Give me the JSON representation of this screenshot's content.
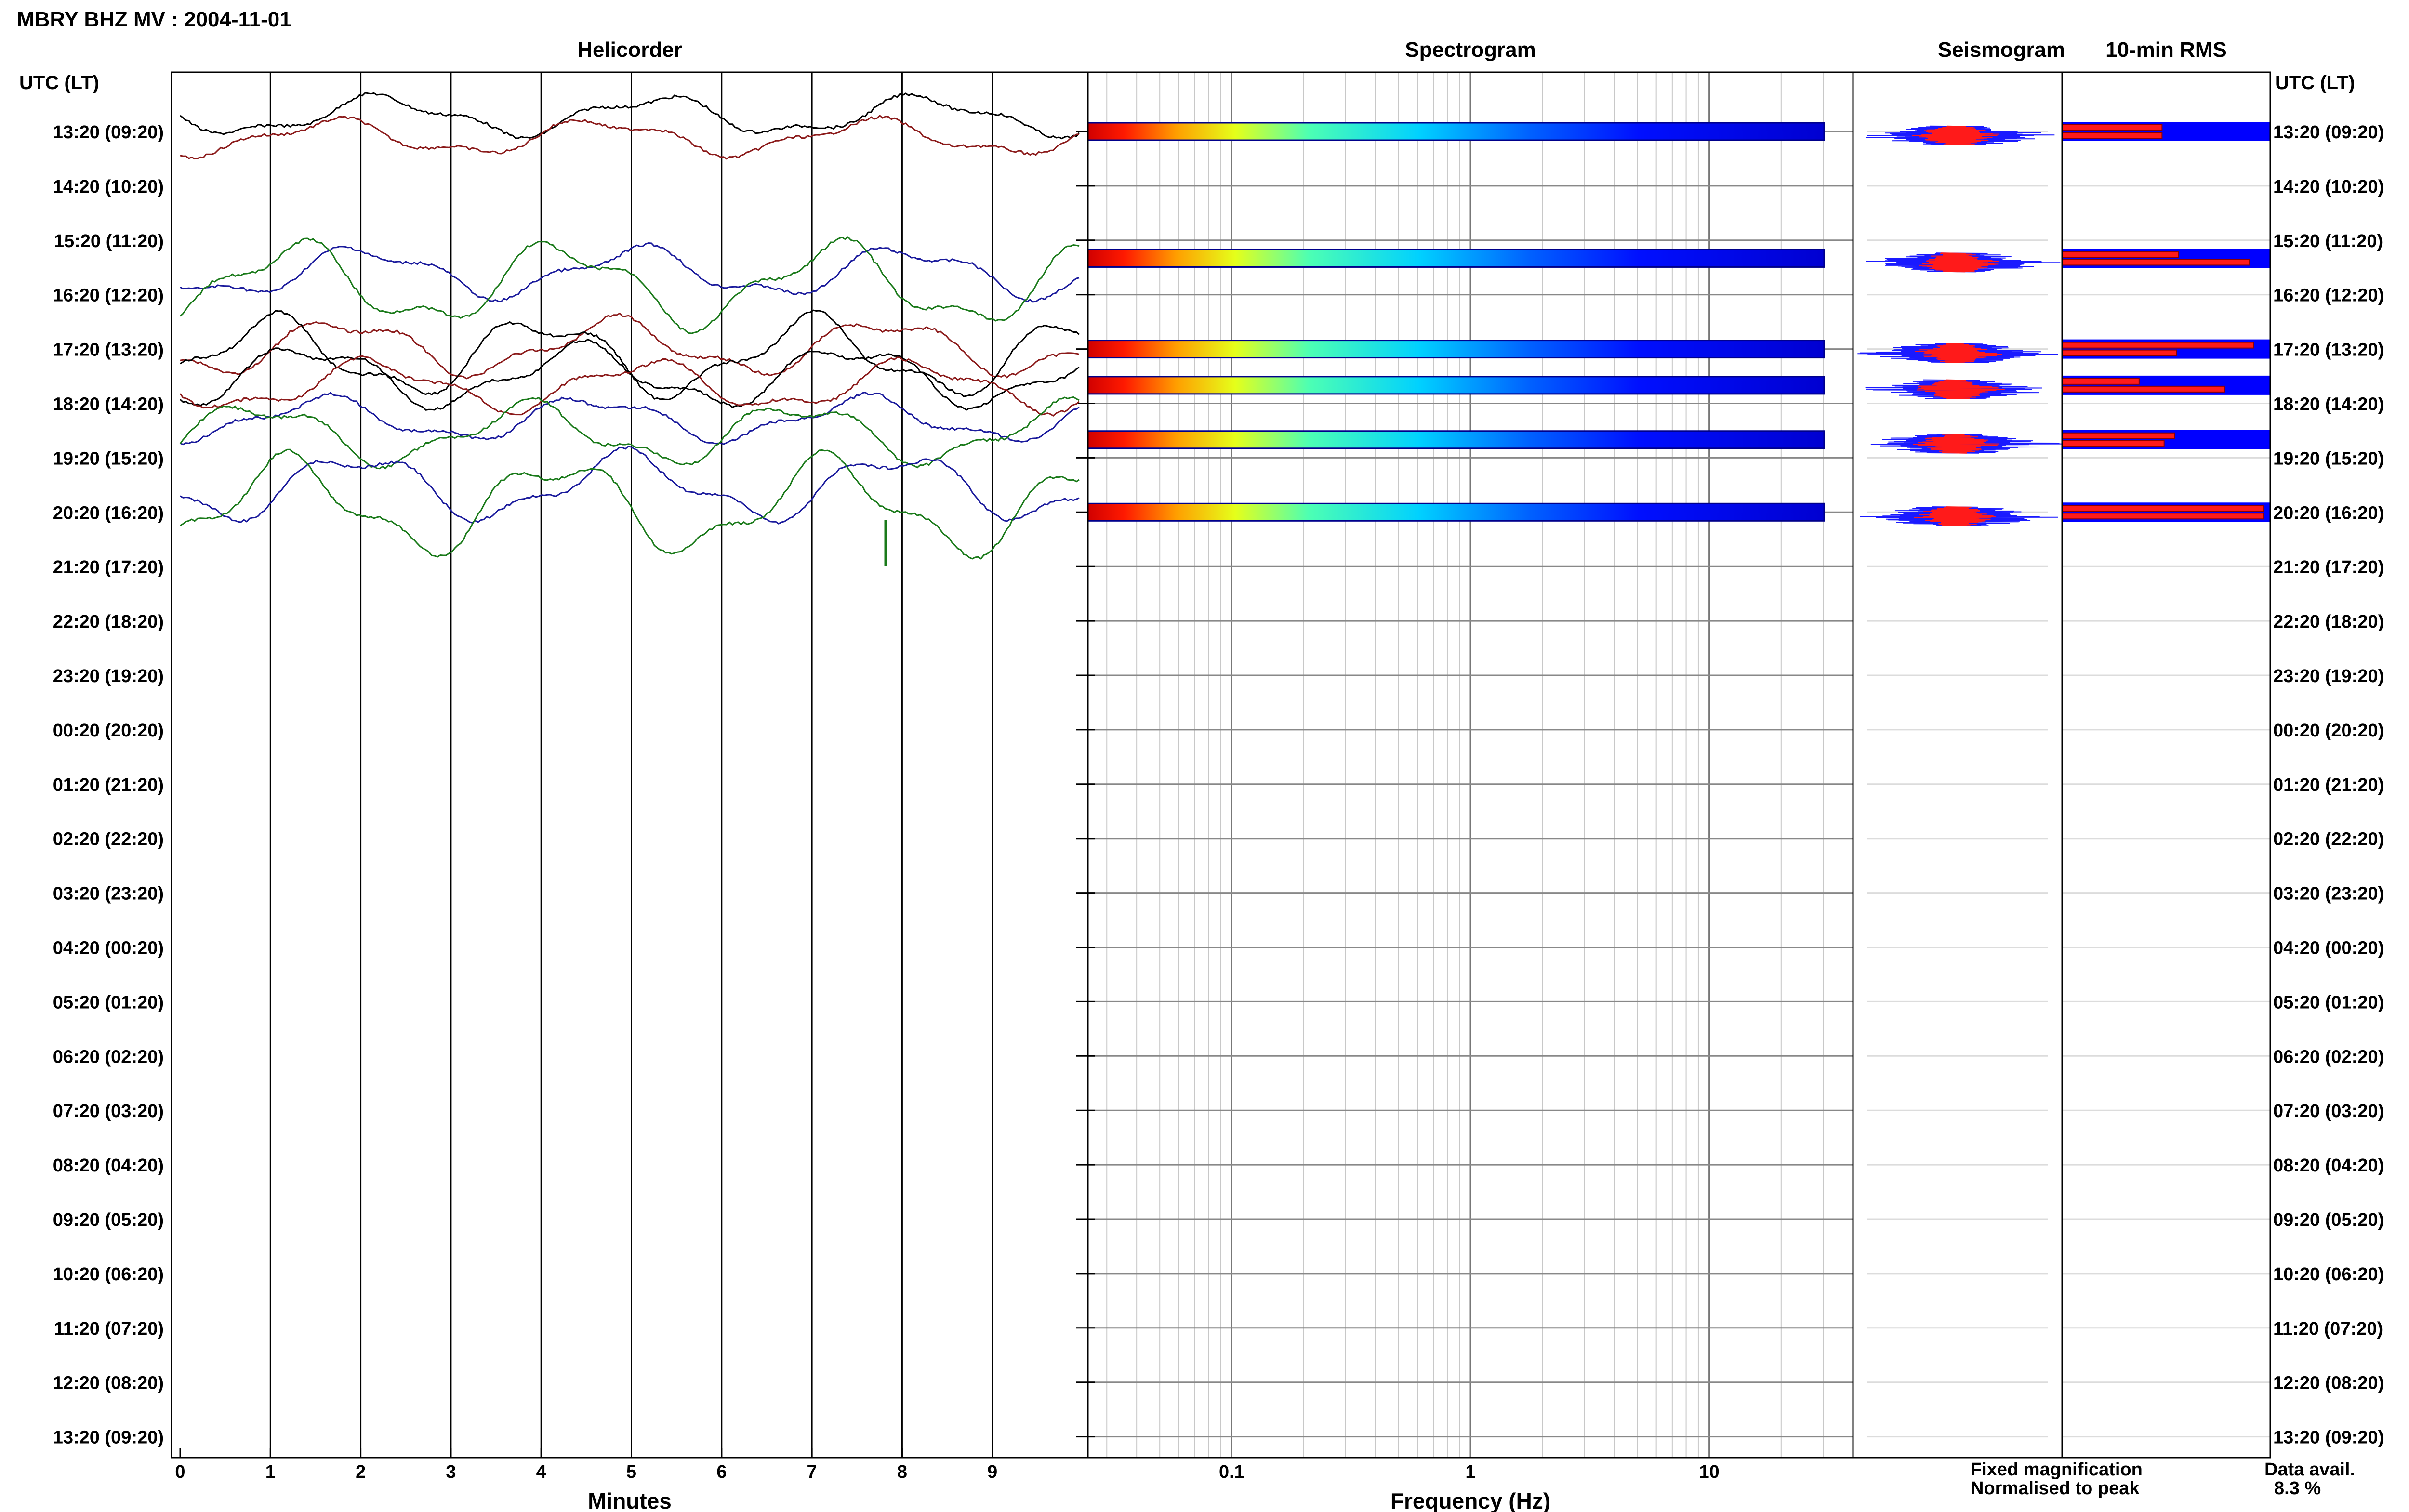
{
  "page": {
    "title": "MBRY BHZ MV : 2004-11-01",
    "left_axis_label": "UTC (LT)",
    "right_axis_label": "UTC (LT)"
  },
  "panels": {
    "helicorder": "Helicorder",
    "spectrogram": "Spectrogram",
    "seismogram": "Seismogram",
    "rms": "10-min RMS"
  },
  "axes": {
    "minutes_label": "Minutes",
    "frequency_label": "Frequency (Hz)"
  },
  "legend": {
    "fixed": "Fixed magnification",
    "normalised": "Normalised to peak",
    "fixed_color": "#1a1aff",
    "normalised_color": "#ff1a1a"
  },
  "data_avail": {
    "label": "Data avail.",
    "value": "8.3 %"
  },
  "chart_data": {
    "type": "heatmap",
    "row_labels": [
      "13:20 (09:20)",
      "14:20 (10:20)",
      "15:20 (11:20)",
      "16:20 (12:20)",
      "17:20 (13:20)",
      "18:20 (14:20)",
      "19:20 (15:20)",
      "20:20 (16:20)",
      "21:20 (17:20)",
      "22:20 (18:20)",
      "23:20 (19:20)",
      "00:20 (20:20)",
      "01:20 (21:20)",
      "02:20 (22:20)",
      "03:20 (23:20)",
      "04:20 (00:20)",
      "05:20 (01:20)",
      "06:20 (02:20)",
      "07:20 (03:20)",
      "08:20 (04:20)",
      "09:20 (05:20)",
      "10:20 (06:20)",
      "11:20 (07:20)",
      "12:20 (08:20)",
      "13:20 (09:20)"
    ],
    "minutes_ticks": [
      "0",
      "1",
      "2",
      "3",
      "4",
      "5",
      "6",
      "7",
      "8",
      "9"
    ],
    "frequency_ticks": [
      "0.1",
      "1",
      "10"
    ],
    "frequency_range_hz": [
      0.025,
      40
    ],
    "frequency_scale": "log",
    "helicorder_colors": [
      "#000000",
      "#8b1a1a",
      "#1a1a9c",
      "#1a7a1a"
    ],
    "data_rows": [
      {
        "hour": "13:20",
        "rms_fixed": 0.48,
        "rms_normalised": 0.48
      },
      {
        "hour": "15:40",
        "rms_fixed": 0.56,
        "rms_normalised": 0.9
      },
      {
        "hour": "17:20",
        "rms_fixed": 0.92,
        "rms_normalised": 0.55
      },
      {
        "hour": "18:00",
        "rms_fixed": 0.37,
        "rms_normalised": 0.78
      },
      {
        "hour": "19:00",
        "rms_fixed": 0.54,
        "rms_normalised": 0.49
      },
      {
        "hour": "20:20",
        "rms_fixed": 0.97,
        "rms_normalised": 0.97
      }
    ],
    "grid": true
  }
}
